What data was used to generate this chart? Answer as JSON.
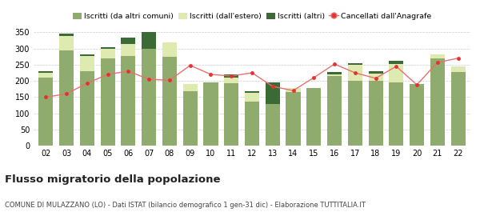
{
  "years": [
    "02",
    "03",
    "04",
    "05",
    "06",
    "07",
    "08",
    "09",
    "10",
    "11",
    "12",
    "13",
    "14",
    "15",
    "16",
    "17",
    "18",
    "19",
    "20",
    "21",
    "22"
  ],
  "iscritti_altri_comuni": [
    210,
    293,
    230,
    270,
    276,
    300,
    275,
    168,
    195,
    193,
    135,
    128,
    165,
    178,
    215,
    200,
    200,
    195,
    190,
    270,
    228
  ],
  "iscritti_estero": [
    15,
    45,
    48,
    28,
    38,
    0,
    45,
    22,
    0,
    18,
    28,
    0,
    12,
    0,
    5,
    50,
    22,
    58,
    0,
    12,
    18
  ],
  "iscritti_altri": [
    5,
    8,
    5,
    5,
    20,
    50,
    0,
    0,
    0,
    10,
    5,
    67,
    0,
    0,
    8,
    5,
    8,
    10,
    0,
    0,
    0
  ],
  "cancellati": [
    150,
    160,
    193,
    220,
    230,
    205,
    202,
    248,
    220,
    215,
    225,
    183,
    170,
    210,
    252,
    225,
    208,
    245,
    188,
    257,
    270
  ],
  "color_altri_comuni": "#8fac6e",
  "color_estero": "#deeab0",
  "color_altri": "#3a6b35",
  "color_cancellati": "#e83030",
  "color_cancellati_line": "#e87070",
  "ylim": [
    0,
    360
  ],
  "yticks": [
    0,
    50,
    100,
    150,
    200,
    250,
    300,
    350
  ],
  "title": "Flusso migratorio della popolazione",
  "subtitle": "COMUNE DI MULAZZANO (LO) - Dati ISTAT (bilancio demografico 1 gen-31 dic) - Elaborazione TUTTITALIA.IT",
  "legend_labels": [
    "Iscritti (da altri comuni)",
    "Iscritti (dall'estero)",
    "Iscritti (altri)",
    "Cancellati dall'Anagrafe"
  ],
  "background_color": "#ffffff",
  "grid_color": "#cccccc"
}
